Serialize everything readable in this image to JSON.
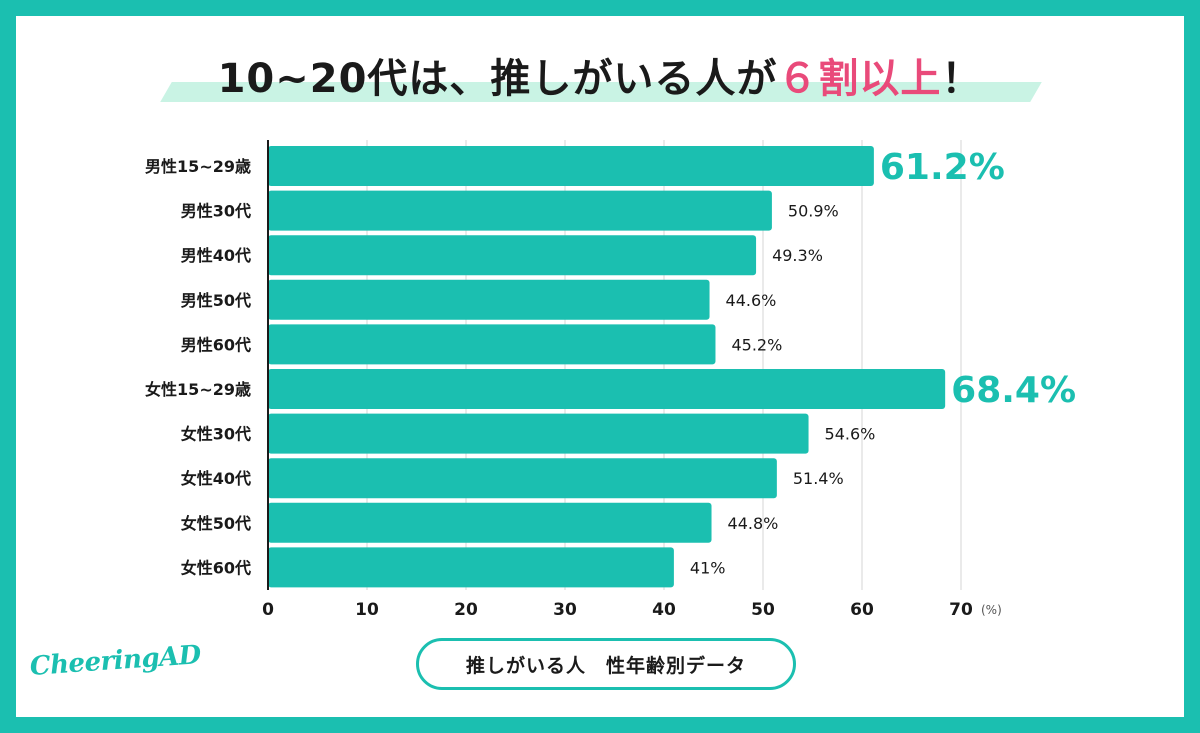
{
  "title": {
    "before": "10~20代は、推しがいる人が",
    "accent": "６割以上",
    "after": "！"
  },
  "footer_label": "推しがいる人　性年齢別データ",
  "logo_text": "CheeringAD",
  "colors": {
    "background": "#1bbfb0",
    "bar": "#1bbfb0",
    "accent": "#e94a7a",
    "highlight": "#c9f3e4"
  },
  "chart_data": {
    "type": "bar",
    "orientation": "horizontal",
    "categories": [
      "男性15~29歳",
      "男性30代",
      "男性40代",
      "男性50代",
      "男性60代",
      "女性15~29歳",
      "女性30代",
      "女性40代",
      "女性50代",
      "女性60代"
    ],
    "values": [
      61.2,
      50.9,
      49.3,
      44.6,
      45.2,
      68.4,
      54.6,
      51.4,
      44.8,
      41
    ],
    "value_labels": [
      "61.2%",
      "50.9%",
      "49.3%",
      "44.6%",
      "45.2%",
      "68.4%",
      "54.6%",
      "51.4%",
      "44.8%",
      "41%"
    ],
    "highlighted": [
      true,
      false,
      false,
      false,
      false,
      true,
      false,
      false,
      false,
      false
    ],
    "x_ticks": [
      0,
      10,
      20,
      30,
      40,
      50,
      60,
      70
    ],
    "x_unit": "(%)",
    "xlim": [
      0,
      70
    ],
    "grid": true
  }
}
